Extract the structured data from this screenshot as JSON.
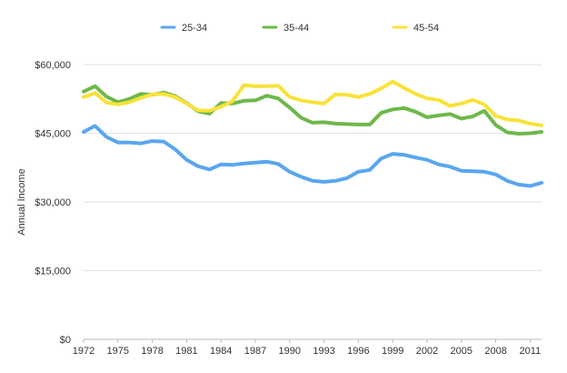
{
  "chart_data": {
    "type": "line",
    "ylabel": "Annual Income",
    "xlabel": "",
    "ylim": [
      0,
      60000
    ],
    "xlim": [
      1972,
      2012
    ],
    "yticks": [
      0,
      15000,
      30000,
      45000,
      60000
    ],
    "ytick_labels": [
      "$0",
      "$15,000",
      "$30,000",
      "$45,000",
      "$60,000"
    ],
    "xticks": [
      1972,
      1975,
      1978,
      1981,
      1984,
      1987,
      1990,
      1993,
      1996,
      1999,
      2002,
      2005,
      2008,
      2011
    ],
    "xtick_labels": [
      "1972",
      "1975",
      "1978",
      "1981",
      "1984",
      "1987",
      "1990",
      "1993",
      "1996",
      "1999",
      "2002",
      "2005",
      "2008",
      "2011"
    ],
    "grid": "horizontal",
    "legend": "top",
    "x": [
      1972,
      1973,
      1974,
      1975,
      1976,
      1977,
      1978,
      1979,
      1980,
      1981,
      1982,
      1983,
      1984,
      1985,
      1986,
      1987,
      1988,
      1989,
      1990,
      1991,
      1992,
      1993,
      1994,
      1995,
      1996,
      1997,
      1998,
      1999,
      2000,
      2001,
      2002,
      2003,
      2004,
      2005,
      2006,
      2007,
      2008,
      2009,
      2010,
      2011,
      2012
    ],
    "series": [
      {
        "name": "25-34",
        "color": "#5aa6ee",
        "values": [
          45300,
          46600,
          44200,
          43000,
          43000,
          42800,
          43300,
          43200,
          41500,
          39200,
          37800,
          37100,
          38200,
          38100,
          38400,
          38600,
          38800,
          38300,
          36600,
          35500,
          34600,
          34400,
          34600,
          35200,
          36600,
          37000,
          39500,
          40500,
          40300,
          39700,
          39200,
          38200,
          37700,
          36800,
          36700,
          36600,
          36000,
          34600,
          33800,
          33500,
          34200
        ]
      },
      {
        "name": "35-44",
        "color": "#6db84a",
        "values": [
          54100,
          55300,
          53000,
          51800,
          52500,
          53600,
          53400,
          53900,
          53100,
          51600,
          49800,
          49300,
          51600,
          51500,
          52100,
          52200,
          53200,
          52600,
          50600,
          48400,
          47300,
          47400,
          47100,
          47000,
          46900,
          46900,
          49500,
          50200,
          50500,
          49700,
          48500,
          48900,
          49200,
          48200,
          48700,
          49900,
          46800,
          45200,
          44900,
          45000,
          45300
        ]
      },
      {
        "name": "45-54",
        "color": "#f8e23a",
        "values": [
          52900,
          53800,
          51700,
          51300,
          51800,
          52700,
          53500,
          53600,
          52900,
          51500,
          50000,
          49900,
          50800,
          52000,
          55500,
          55300,
          55300,
          55400,
          52900,
          52200,
          51800,
          51500,
          53500,
          53400,
          52900,
          53600,
          54800,
          56300,
          54900,
          53600,
          52600,
          52300,
          51000,
          51500,
          52300,
          51300,
          48800,
          48000,
          47800,
          47100,
          46700
        ]
      }
    ]
  }
}
